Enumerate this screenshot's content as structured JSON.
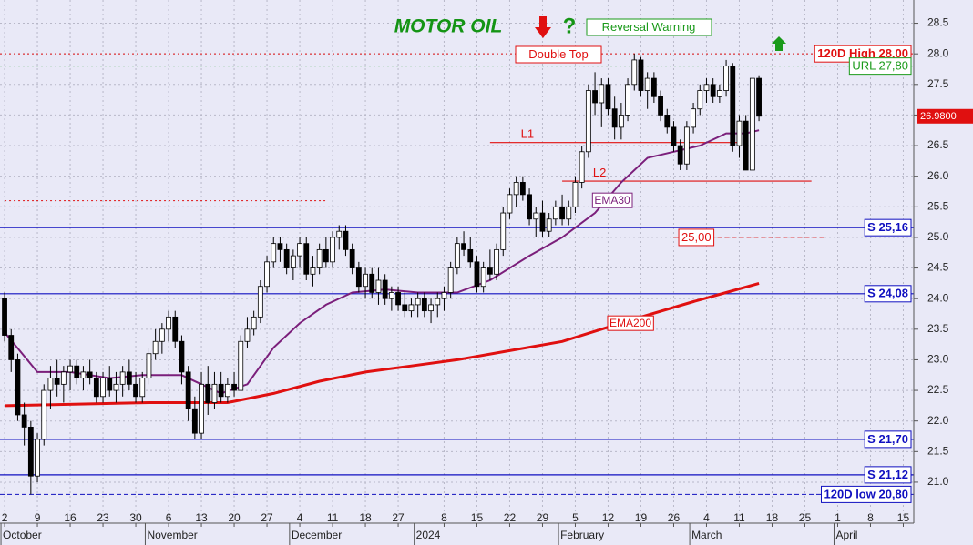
{
  "chart_data": {
    "type": "candlestick",
    "title": "MOTOR OIL",
    "annotations": [
      "Reversal Warning",
      "Double Top"
    ],
    "x": [
      0,
      1,
      2,
      3,
      4,
      5,
      6,
      7,
      8,
      9,
      10,
      11,
      12,
      13,
      14,
      15,
      16,
      17,
      18,
      19,
      20,
      21,
      22,
      23,
      24,
      25,
      26,
      27,
      28,
      29,
      30,
      31,
      32,
      33,
      34,
      35,
      36,
      37,
      38,
      39,
      40,
      41,
      42,
      43,
      44,
      45,
      46,
      47,
      48,
      49,
      50,
      51,
      52,
      53,
      54,
      55,
      56,
      57,
      58,
      59,
      60,
      61,
      62,
      63,
      64,
      65,
      66,
      67,
      68,
      69,
      70,
      71,
      72,
      73,
      74,
      75,
      76,
      77,
      78,
      79,
      80,
      81,
      82,
      83,
      84,
      85,
      86,
      87,
      88,
      89,
      90,
      91,
      92,
      93,
      94,
      95,
      96,
      97,
      98,
      99,
      100,
      101,
      102,
      103,
      104,
      105,
      106,
      107,
      108,
      109,
      110,
      111,
      112,
      113,
      114,
      115
    ],
    "open": [
      24.0,
      23.4,
      23.0,
      22.1,
      21.9,
      21.1,
      21.7,
      22.5,
      22.7,
      22.6,
      22.8,
      22.9,
      22.7,
      22.8,
      22.7,
      22.4,
      22.7,
      22.5,
      22.6,
      22.8,
      22.6,
      22.4,
      22.7,
      23.1,
      23.3,
      23.5,
      23.7,
      23.3,
      22.8,
      22.2,
      21.8,
      22.6,
      22.3,
      22.6,
      22.4,
      22.6,
      22.5,
      23.3,
      23.5,
      23.7,
      24.2,
      24.6,
      24.9,
      24.8,
      24.5,
      24.7,
      24.9,
      24.4,
      24.5,
      24.8,
      24.6,
      25.0,
      25.1,
      24.8,
      24.5,
      24.2,
      24.4,
      24.1,
      24.3,
      24.0,
      24.1,
      23.9,
      23.8,
      23.9,
      24.0,
      23.8,
      23.9,
      24.0,
      24.1,
      24.5,
      24.9,
      24.8,
      24.6,
      24.2,
      24.5,
      24.4,
      24.8,
      25.4,
      25.7,
      25.9,
      25.7,
      25.3,
      25.4,
      25.1,
      25.3,
      25.5,
      25.3,
      25.5,
      25.9,
      26.4,
      27.4,
      27.2,
      27.5,
      27.1,
      26.8,
      27.0,
      27.5,
      27.9,
      27.4,
      27.6,
      27.3,
      27.0,
      26.8,
      26.5,
      26.2,
      26.8,
      27.1,
      27.4,
      27.5,
      27.3,
      27.4,
      27.8,
      26.5,
      26.9,
      26.1,
      27.6
    ],
    "high": [
      24.1,
      23.5,
      23.1,
      22.3,
      22.0,
      21.8,
      22.6,
      22.9,
      23.0,
      22.9,
      23.0,
      23.0,
      22.9,
      23.0,
      22.8,
      22.8,
      22.9,
      22.8,
      22.9,
      23.0,
      22.8,
      22.8,
      23.2,
      23.5,
      23.6,
      23.8,
      23.8,
      23.4,
      22.9,
      22.4,
      22.8,
      22.9,
      22.8,
      22.8,
      22.7,
      22.8,
      23.4,
      23.7,
      23.8,
      24.3,
      24.7,
      25.0,
      25.0,
      24.9,
      24.8,
      25.0,
      25.0,
      24.7,
      24.9,
      25.0,
      25.1,
      25.2,
      25.2,
      24.9,
      24.6,
      24.5,
      24.5,
      24.5,
      24.4,
      24.2,
      24.2,
      24.1,
      24.0,
      24.1,
      24.1,
      24.0,
      24.1,
      24.2,
      24.6,
      25.0,
      25.1,
      25.0,
      24.7,
      24.6,
      24.8,
      24.9,
      25.5,
      25.8,
      26.0,
      26.0,
      25.8,
      25.5,
      25.6,
      25.4,
      25.6,
      25.7,
      25.6,
      26.0,
      26.5,
      27.5,
      27.7,
      27.6,
      27.6,
      27.3,
      27.2,
      27.6,
      28.0,
      27.95,
      27.7,
      27.7,
      27.4,
      27.1,
      26.9,
      26.6,
      26.9,
      27.2,
      27.5,
      27.6,
      27.6,
      27.5,
      27.9,
      27.85,
      27.0,
      27.0,
      27.6,
      27.65
    ],
    "low": [
      23.3,
      22.8,
      22.0,
      21.6,
      20.8,
      21.0,
      21.6,
      22.2,
      22.4,
      22.3,
      22.5,
      22.6,
      22.5,
      22.6,
      22.3,
      22.3,
      22.4,
      22.3,
      22.4,
      22.5,
      22.3,
      22.3,
      22.6,
      23.0,
      23.1,
      23.3,
      23.2,
      22.6,
      22.0,
      21.7,
      21.7,
      22.1,
      22.2,
      22.3,
      22.3,
      22.4,
      22.5,
      23.2,
      23.4,
      23.6,
      24.1,
      24.5,
      24.6,
      24.4,
      24.3,
      24.5,
      24.3,
      24.2,
      24.4,
      24.5,
      24.5,
      24.8,
      24.7,
      24.4,
      24.1,
      24.0,
      24.0,
      23.9,
      23.9,
      23.8,
      23.8,
      23.7,
      23.7,
      23.7,
      23.7,
      23.6,
      23.7,
      23.8,
      24.0,
      24.4,
      24.7,
      24.5,
      24.1,
      24.1,
      24.3,
      24.3,
      24.7,
      25.3,
      25.5,
      25.6,
      25.2,
      25.0,
      25.0,
      25.0,
      25.2,
      25.2,
      25.2,
      25.4,
      25.8,
      26.3,
      27.0,
      26.8,
      27.0,
      26.6,
      26.6,
      26.9,
      27.4,
      27.3,
      27.1,
      27.2,
      26.9,
      26.7,
      26.4,
      26.1,
      26.1,
      26.7,
      27.0,
      27.2,
      27.2,
      27.2,
      27.3,
      26.4,
      26.3,
      26.1,
      26.1,
      26.9
    ],
    "close": [
      23.4,
      23.0,
      22.1,
      21.9,
      21.1,
      21.7,
      22.5,
      22.7,
      22.6,
      22.8,
      22.9,
      22.7,
      22.8,
      22.7,
      22.4,
      22.7,
      22.5,
      22.6,
      22.8,
      22.6,
      22.4,
      22.7,
      23.1,
      23.3,
      23.5,
      23.7,
      23.3,
      22.8,
      22.2,
      21.8,
      22.6,
      22.3,
      22.6,
      22.4,
      22.6,
      22.5,
      23.3,
      23.5,
      23.7,
      24.2,
      24.6,
      24.9,
      24.8,
      24.5,
      24.7,
      24.9,
      24.4,
      24.5,
      24.8,
      24.6,
      25.0,
      25.1,
      24.8,
      24.5,
      24.2,
      24.4,
      24.1,
      24.3,
      24.0,
      24.1,
      23.9,
      23.8,
      23.9,
      24.0,
      23.8,
      23.9,
      24.0,
      24.1,
      24.5,
      24.9,
      24.8,
      24.6,
      24.2,
      24.5,
      24.4,
      24.8,
      25.4,
      25.7,
      25.9,
      25.7,
      25.3,
      25.4,
      25.1,
      25.3,
      25.5,
      25.3,
      25.5,
      25.9,
      26.4,
      27.4,
      27.2,
      27.5,
      27.1,
      26.8,
      27.0,
      27.5,
      27.9,
      27.4,
      27.6,
      27.3,
      27.0,
      26.8,
      26.5,
      26.2,
      26.8,
      27.1,
      27.4,
      27.5,
      27.3,
      27.4,
      27.8,
      26.5,
      26.9,
      26.1,
      27.6,
      26.98
    ],
    "last_price": {
      "value": 26.98,
      "label": "26.9800"
    },
    "lines": [
      {
        "name": "EMA30",
        "color": "#7b1f7b",
        "x": [
          0,
          5,
          10,
          16,
          21,
          27,
          33,
          37,
          41,
          45,
          49,
          53,
          58,
          63,
          69,
          74,
          80,
          85,
          90,
          94,
          98,
          102,
          106,
          110,
          113,
          115
        ],
        "values": [
          23.45,
          22.8,
          22.8,
          22.7,
          22.75,
          22.75,
          22.45,
          22.6,
          23.2,
          23.6,
          23.9,
          24.1,
          24.15,
          24.1,
          24.1,
          24.3,
          24.7,
          25.0,
          25.4,
          25.9,
          26.3,
          26.4,
          26.5,
          26.7,
          26.7,
          26.75
        ]
      },
      {
        "name": "EMA200",
        "color": "#e01010",
        "x": [
          0,
          22,
          34,
          41,
          48,
          55,
          62,
          69,
          77,
          85,
          91,
          97,
          105,
          110,
          115
        ],
        "values": [
          22.25,
          22.3,
          22.3,
          22.45,
          22.65,
          22.8,
          22.9,
          23.0,
          23.15,
          23.3,
          23.5,
          23.7,
          23.95,
          24.1,
          24.25
        ]
      }
    ],
    "levels": [
      {
        "value": 28.0,
        "label": "120D High 28,00",
        "color": "#e01010",
        "line_style": "dotted",
        "boxed": true
      },
      {
        "value": 27.8,
        "label": "URL 27,80",
        "color": "#1a9a1a",
        "line_style": "dotted",
        "boxed": true
      },
      {
        "value": 26.55,
        "label": "L1",
        "color": "#e01010",
        "line_style": "solid",
        "from": 74,
        "to": 112,
        "boxed": false
      },
      {
        "value": 25.92,
        "label": "L2",
        "color": "#e01010",
        "line_style": "solid",
        "from": 85,
        "to": 123,
        "boxed": false
      },
      {
        "value": 25.6,
        "color": "#e01010",
        "line_style": "dotted",
        "from": 0,
        "to": 49
      },
      {
        "value": 25.16,
        "label": "S 25,16",
        "color": "#1010c0",
        "line_style": "solid",
        "boxed": true
      },
      {
        "value": 25.0,
        "label": "25,00",
        "color": "#e01010",
        "line_style": "dashed",
        "from": 102,
        "to": 125,
        "boxed": true
      },
      {
        "value": 24.08,
        "label": "S 24,08",
        "color": "#1010c0",
        "line_style": "solid",
        "boxed": true
      },
      {
        "value": 21.7,
        "label": "S 21,70",
        "color": "#1010c0",
        "line_style": "solid",
        "boxed": true
      },
      {
        "value": 21.12,
        "label": "S 21,12",
        "color": "#1010c0",
        "line_style": "solid",
        "boxed": true
      },
      {
        "value": 20.8,
        "label": "120D low 20,80",
        "color": "#1010c0",
        "line_style": "dashed",
        "boxed": true
      }
    ],
    "xlim": [
      -0.7,
      138.6
    ],
    "xticks": [
      {
        "value": 0,
        "label": "2"
      },
      {
        "value": 5,
        "label": "9"
      },
      {
        "value": 10,
        "label": "16"
      },
      {
        "value": 15,
        "label": "23"
      },
      {
        "value": 20,
        "label": "30"
      },
      {
        "value": 25,
        "label": "6"
      },
      {
        "value": 30,
        "label": "13"
      },
      {
        "value": 35,
        "label": "20"
      },
      {
        "value": 40,
        "label": "27"
      },
      {
        "value": 45,
        "label": "4"
      },
      {
        "value": 50,
        "label": "11"
      },
      {
        "value": 55,
        "label": "18"
      },
      {
        "value": 60,
        "label": "27"
      },
      {
        "value": 67,
        "label": "8"
      },
      {
        "value": 72,
        "label": "15"
      },
      {
        "value": 77,
        "label": "22"
      },
      {
        "value": 82,
        "label": "29"
      },
      {
        "value": 87,
        "label": "5"
      },
      {
        "value": 92,
        "label": "12"
      },
      {
        "value": 97,
        "label": "19"
      },
      {
        "value": 102,
        "label": "26"
      },
      {
        "value": 107,
        "label": "4"
      },
      {
        "value": 112,
        "label": "11"
      },
      {
        "value": 117,
        "label": "18"
      },
      {
        "value": 122,
        "label": "25"
      },
      {
        "value": 127,
        "label": "1"
      },
      {
        "value": 132,
        "label": "8"
      },
      {
        "value": 137,
        "label": "15"
      }
    ],
    "months": [
      {
        "value": 0,
        "label": "October"
      },
      {
        "value": 22,
        "label": "November"
      },
      {
        "value": 44,
        "label": "December"
      },
      {
        "value": 63,
        "label": "2024"
      },
      {
        "value": 85,
        "label": "February"
      },
      {
        "value": 105,
        "label": "March"
      },
      {
        "value": 127,
        "label": "April"
      }
    ],
    "ylim": [
      20.33,
      28.88
    ],
    "yticks": [
      {
        "value": 21.0,
        "label": "21.0"
      },
      {
        "value": 21.5,
        "label": "21.5"
      },
      {
        "value": 22.0,
        "label": "22.0"
      },
      {
        "value": 22.5,
        "label": "22.5"
      },
      {
        "value": 23.0,
        "label": "23.0"
      },
      {
        "value": 23.5,
        "label": "23.5"
      },
      {
        "value": 24.0,
        "label": "24.0"
      },
      {
        "value": 24.5,
        "label": "24.5"
      },
      {
        "value": 25.0,
        "label": "25.0"
      },
      {
        "value": 25.5,
        "label": "25.5"
      },
      {
        "value": 26.0,
        "label": "26.0"
      },
      {
        "value": 26.5,
        "label": "26.5"
      },
      {
        "value": 27.0,
        "label": "27.0"
      },
      {
        "value": 27.5,
        "label": "27.5"
      },
      {
        "value": 28.0,
        "label": "28.0"
      },
      {
        "value": 28.5,
        "label": "28.5"
      }
    ],
    "grid": true
  }
}
